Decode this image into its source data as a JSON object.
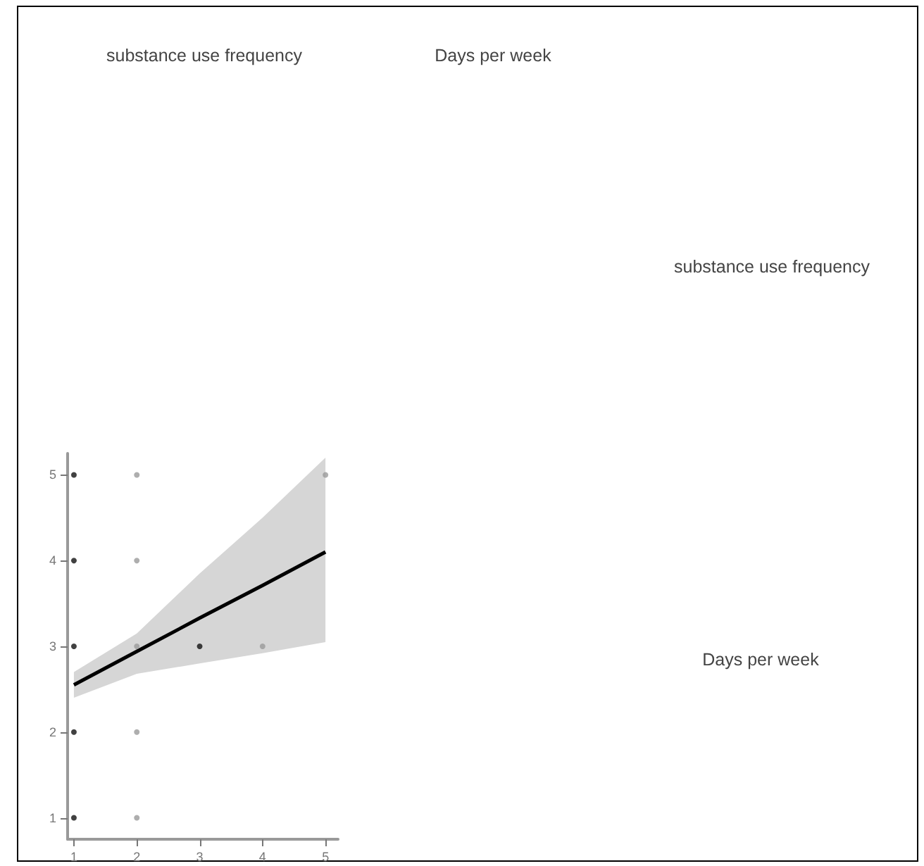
{
  "chart_data": {
    "type": "scatter",
    "annotations": [
      "substance use frequency",
      "Days per week",
      "substance use frequency",
      "Days per week"
    ],
    "xlim": [
      0.9,
      5.2
    ],
    "xticks": [
      1,
      2,
      3,
      4,
      5
    ],
    "ylim": [
      0.75,
      5.25
    ],
    "yticks": [
      1,
      2,
      3,
      4,
      5
    ],
    "grid": false,
    "marker": "circle",
    "series": [
      {
        "color": "#111111",
        "x": [
          1,
          1,
          1,
          1,
          1,
          3
        ],
        "values": [
          1,
          2,
          3,
          4,
          5,
          3
        ]
      },
      {
        "color": "#9a9a9a",
        "x": [
          2,
          2,
          2,
          2,
          2,
          4,
          5
        ],
        "values": [
          1,
          2,
          3,
          4,
          5,
          3,
          5
        ]
      },
      {
        "type": "line",
        "color": "#000000",
        "x": [
          1,
          2,
          3,
          4,
          5
        ],
        "values": [
          2.55,
          2.94,
          3.33,
          3.71,
          4.1
        ],
        "lower": [
          2.4,
          2.68,
          2.8,
          2.92,
          3.05
        ],
        "upper": [
          2.7,
          3.15,
          3.85,
          4.5,
          5.2
        ],
        "marker": "none",
        "line_style": "solid"
      }
    ]
  }
}
